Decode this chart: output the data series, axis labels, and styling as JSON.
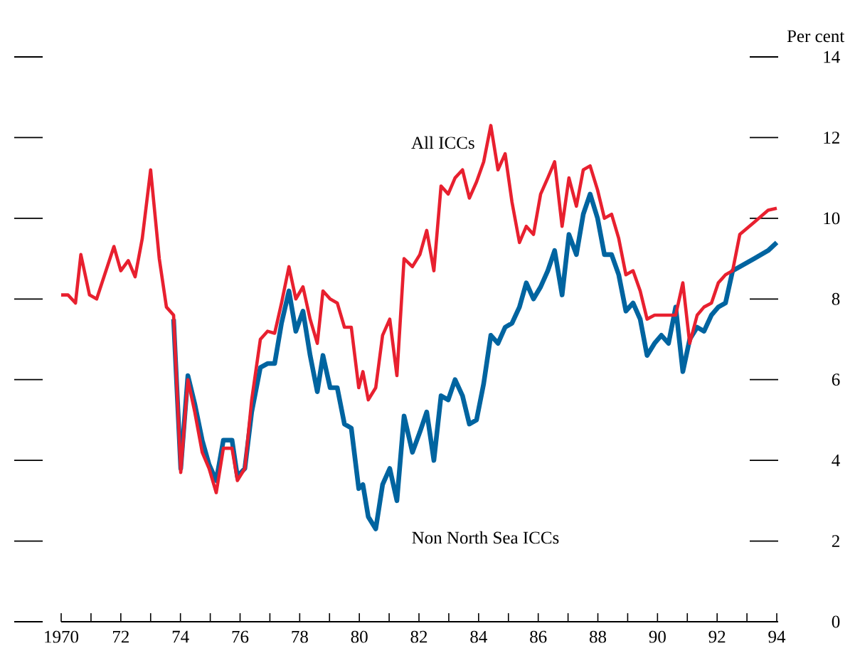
{
  "chart_data": {
    "type": "line",
    "ylabel": "Per cent",
    "x": [
      1970.0,
      1970.23,
      1970.48,
      1970.66,
      1970.95,
      1971.19,
      1971.77,
      1972.0,
      1972.25,
      1972.48,
      1972.72,
      1973.0,
      1973.29,
      1973.53,
      1973.77,
      1974.01,
      1974.25,
      1974.48,
      1974.73,
      1974.96,
      1975.2,
      1975.44,
      1975.73,
      1975.91,
      1976.16,
      1976.39,
      1976.68,
      1976.92,
      1977.16,
      1977.39,
      1977.64,
      1977.87,
      1978.11,
      1978.35,
      1978.59,
      1978.78,
      1979.02,
      1979.26,
      1979.5,
      1979.73,
      1979.98,
      1980.12,
      1980.3,
      1980.55,
      1980.78,
      1981.02,
      1981.26,
      1981.5,
      1981.78,
      1982.03,
      1982.26,
      1982.5,
      1982.74,
      1982.98,
      1983.21,
      1983.46,
      1983.69,
      1983.93,
      1984.17,
      1984.41,
      1984.65,
      1984.89,
      1985.12,
      1985.37,
      1985.6,
      1985.84,
      1986.08,
      1986.32,
      1986.55,
      1986.8,
      1987.03,
      1987.28,
      1987.51,
      1987.74,
      1987.99,
      1988.22,
      1988.46,
      1988.7,
      1988.94,
      1989.18,
      1989.42,
      1989.65,
      1989.9,
      1990.13,
      1990.37,
      1990.61,
      1990.85,
      1991.08,
      1991.33,
      1991.56,
      1991.81,
      1992.04,
      1992.28,
      1992.52,
      1992.76,
      1993.24,
      1993.71,
      1994.0
    ],
    "series": [
      {
        "name": "All ICCs",
        "color": "#e8202f",
        "values": [
          8.1,
          8.1,
          7.9,
          9.1,
          8.1,
          8.0,
          9.3,
          8.7,
          8.95,
          8.55,
          9.5,
          11.2,
          9.0,
          7.8,
          7.6,
          3.7,
          6.0,
          5.2,
          4.2,
          3.8,
          3.2,
          4.3,
          4.3,
          3.5,
          3.8,
          5.5,
          7.0,
          7.2,
          7.15,
          7.9,
          8.8,
          8.0,
          8.3,
          7.5,
          6.9,
          8.2,
          8.0,
          7.9,
          7.3,
          7.3,
          5.8,
          6.2,
          5.5,
          5.8,
          7.1,
          7.5,
          6.1,
          9.0,
          8.8,
          9.1,
          9.7,
          8.7,
          10.8,
          10.6,
          11.0,
          11.2,
          10.5,
          10.9,
          11.4,
          12.3,
          11.2,
          11.6,
          10.4,
          9.4,
          9.8,
          9.6,
          10.6,
          11.0,
          11.4,
          9.8,
          11.0,
          10.3,
          11.2,
          11.3,
          10.7,
          10.0,
          10.1,
          9.5,
          8.6,
          8.7,
          8.2,
          7.5,
          7.6,
          7.6,
          7.6,
          7.6,
          8.4,
          6.9,
          7.6,
          7.8,
          7.9,
          8.4,
          8.6,
          8.7,
          9.6,
          9.9,
          10.2,
          10.25
        ]
      },
      {
        "name": "Non North Sea ICCs",
        "color": "#0064a0",
        "values": [
          null,
          null,
          null,
          null,
          null,
          null,
          null,
          null,
          null,
          null,
          null,
          null,
          null,
          null,
          7.5,
          3.8,
          6.1,
          5.4,
          4.5,
          3.9,
          3.5,
          4.5,
          4.5,
          3.6,
          3.8,
          5.2,
          6.3,
          6.4,
          6.4,
          7.4,
          8.2,
          7.2,
          7.7,
          6.6,
          5.7,
          6.6,
          5.8,
          5.8,
          4.9,
          4.8,
          3.3,
          3.4,
          2.6,
          2.3,
          3.4,
          3.8,
          3.0,
          5.1,
          4.2,
          4.7,
          5.2,
          4.0,
          5.6,
          5.5,
          6.0,
          5.6,
          4.9,
          5.0,
          5.9,
          7.1,
          6.9,
          7.3,
          7.4,
          7.8,
          8.4,
          8.0,
          8.3,
          8.7,
          9.2,
          8.1,
          9.6,
          9.1,
          10.1,
          10.6,
          10.0,
          9.1,
          9.1,
          8.6,
          7.7,
          7.9,
          7.5,
          6.6,
          6.9,
          7.1,
          6.9,
          7.8,
          6.2,
          7.0,
          7.3,
          7.2,
          7.6,
          7.8,
          7.9,
          8.7,
          8.8,
          9.0,
          9.2,
          9.4
        ]
      }
    ],
    "xlim": [
      1970,
      1994
    ],
    "xticks": [
      1970,
      {
        "value": 1971,
        "label": null
      },
      {
        "value": 1972,
        "label": "72"
      },
      {
        "value": 1973,
        "label": null
      },
      {
        "value": 1974,
        "label": "74"
      },
      {
        "value": 1975,
        "label": null
      },
      {
        "value": 1976,
        "label": "76"
      },
      {
        "value": 1977,
        "label": null
      },
      {
        "value": 1978,
        "label": "78"
      },
      {
        "value": 1979,
        "label": null
      },
      {
        "value": 1980,
        "label": "80"
      },
      {
        "value": 1981,
        "label": null
      },
      {
        "value": 1982,
        "label": "82"
      },
      {
        "value": 1983,
        "label": null
      },
      {
        "value": 1984,
        "label": "84"
      },
      {
        "value": 1985,
        "label": null
      },
      {
        "value": 1986,
        "label": "86"
      },
      {
        "value": 1987,
        "label": null
      },
      {
        "value": 1988,
        "label": "88"
      },
      {
        "value": 1989,
        "label": null
      },
      {
        "value": 1990,
        "label": "90"
      },
      {
        "value": 1991,
        "label": null
      },
      {
        "value": 1992,
        "label": "92"
      },
      {
        "value": 1993,
        "label": null
      },
      {
        "value": 1994,
        "label": "94"
      }
    ],
    "ylim": [
      0,
      14
    ],
    "yticks": [
      0,
      2,
      4,
      6,
      8,
      10,
      12,
      14
    ],
    "grid": false,
    "legend": false,
    "marker": "none",
    "line_style": "solid"
  }
}
